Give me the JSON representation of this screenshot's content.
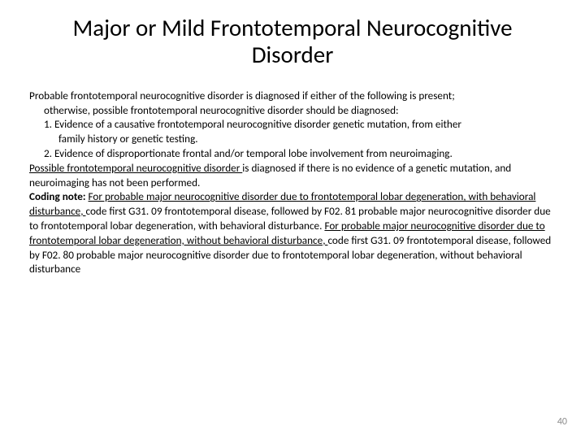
{
  "title": "Major or Mild Frontotemporal Neurocognitive Disorder",
  "p1": "Probable frontotemporal neurocognitive disorder is diagnosed if either of the following is present;",
  "p2": "otherwise, possible frontotemporal neurocognitive disorder should be diagnosed:",
  "p3": "1. Evidence of a causative frontotemporal neurocognitive disorder genetic mutation, from either",
  "p4": "family history or genetic testing.",
  "p5": "2. Evidence of disproportionate frontal and/or temporal lobe involvement from neuroimaging.",
  "p6a": "Possible frontotemporal neurocognitive disorder ",
  "p6b": "is diagnosed if there is no evidence of a genetic mutation, and neuroimaging has not been performed.",
  "p7a": "Coding note: ",
  "p7b": "For probable major neurocognitive disorder due to frontotemporal lobar degeneration, with behavioral disturbance, ",
  "p7c": "code first G31. 09 frontotemporal disease, followed by F02. 81 probable major neurocognitive disorder due to frontotemporal lobar degeneration, with behavioral disturbance. ",
  "p7d": "For probable major neurocognitive disorder due to frontotemporal lobar degeneration, without behavioral disturbance, ",
  "p7e": "code first G31. 09 frontotemporal disease, followed by F02. 80 probable major neurocognitive disorder due to frontotemporal lobar degeneration, without behavioral disturbance",
  "pageNumber": "40",
  "colors": {
    "text": "#000000",
    "background": "#ffffff",
    "pageNum": "#8b8b8b"
  },
  "fonts": {
    "title_size": 29,
    "body_size": 13.2,
    "pagenum_size": 12,
    "family": "Calibri"
  }
}
